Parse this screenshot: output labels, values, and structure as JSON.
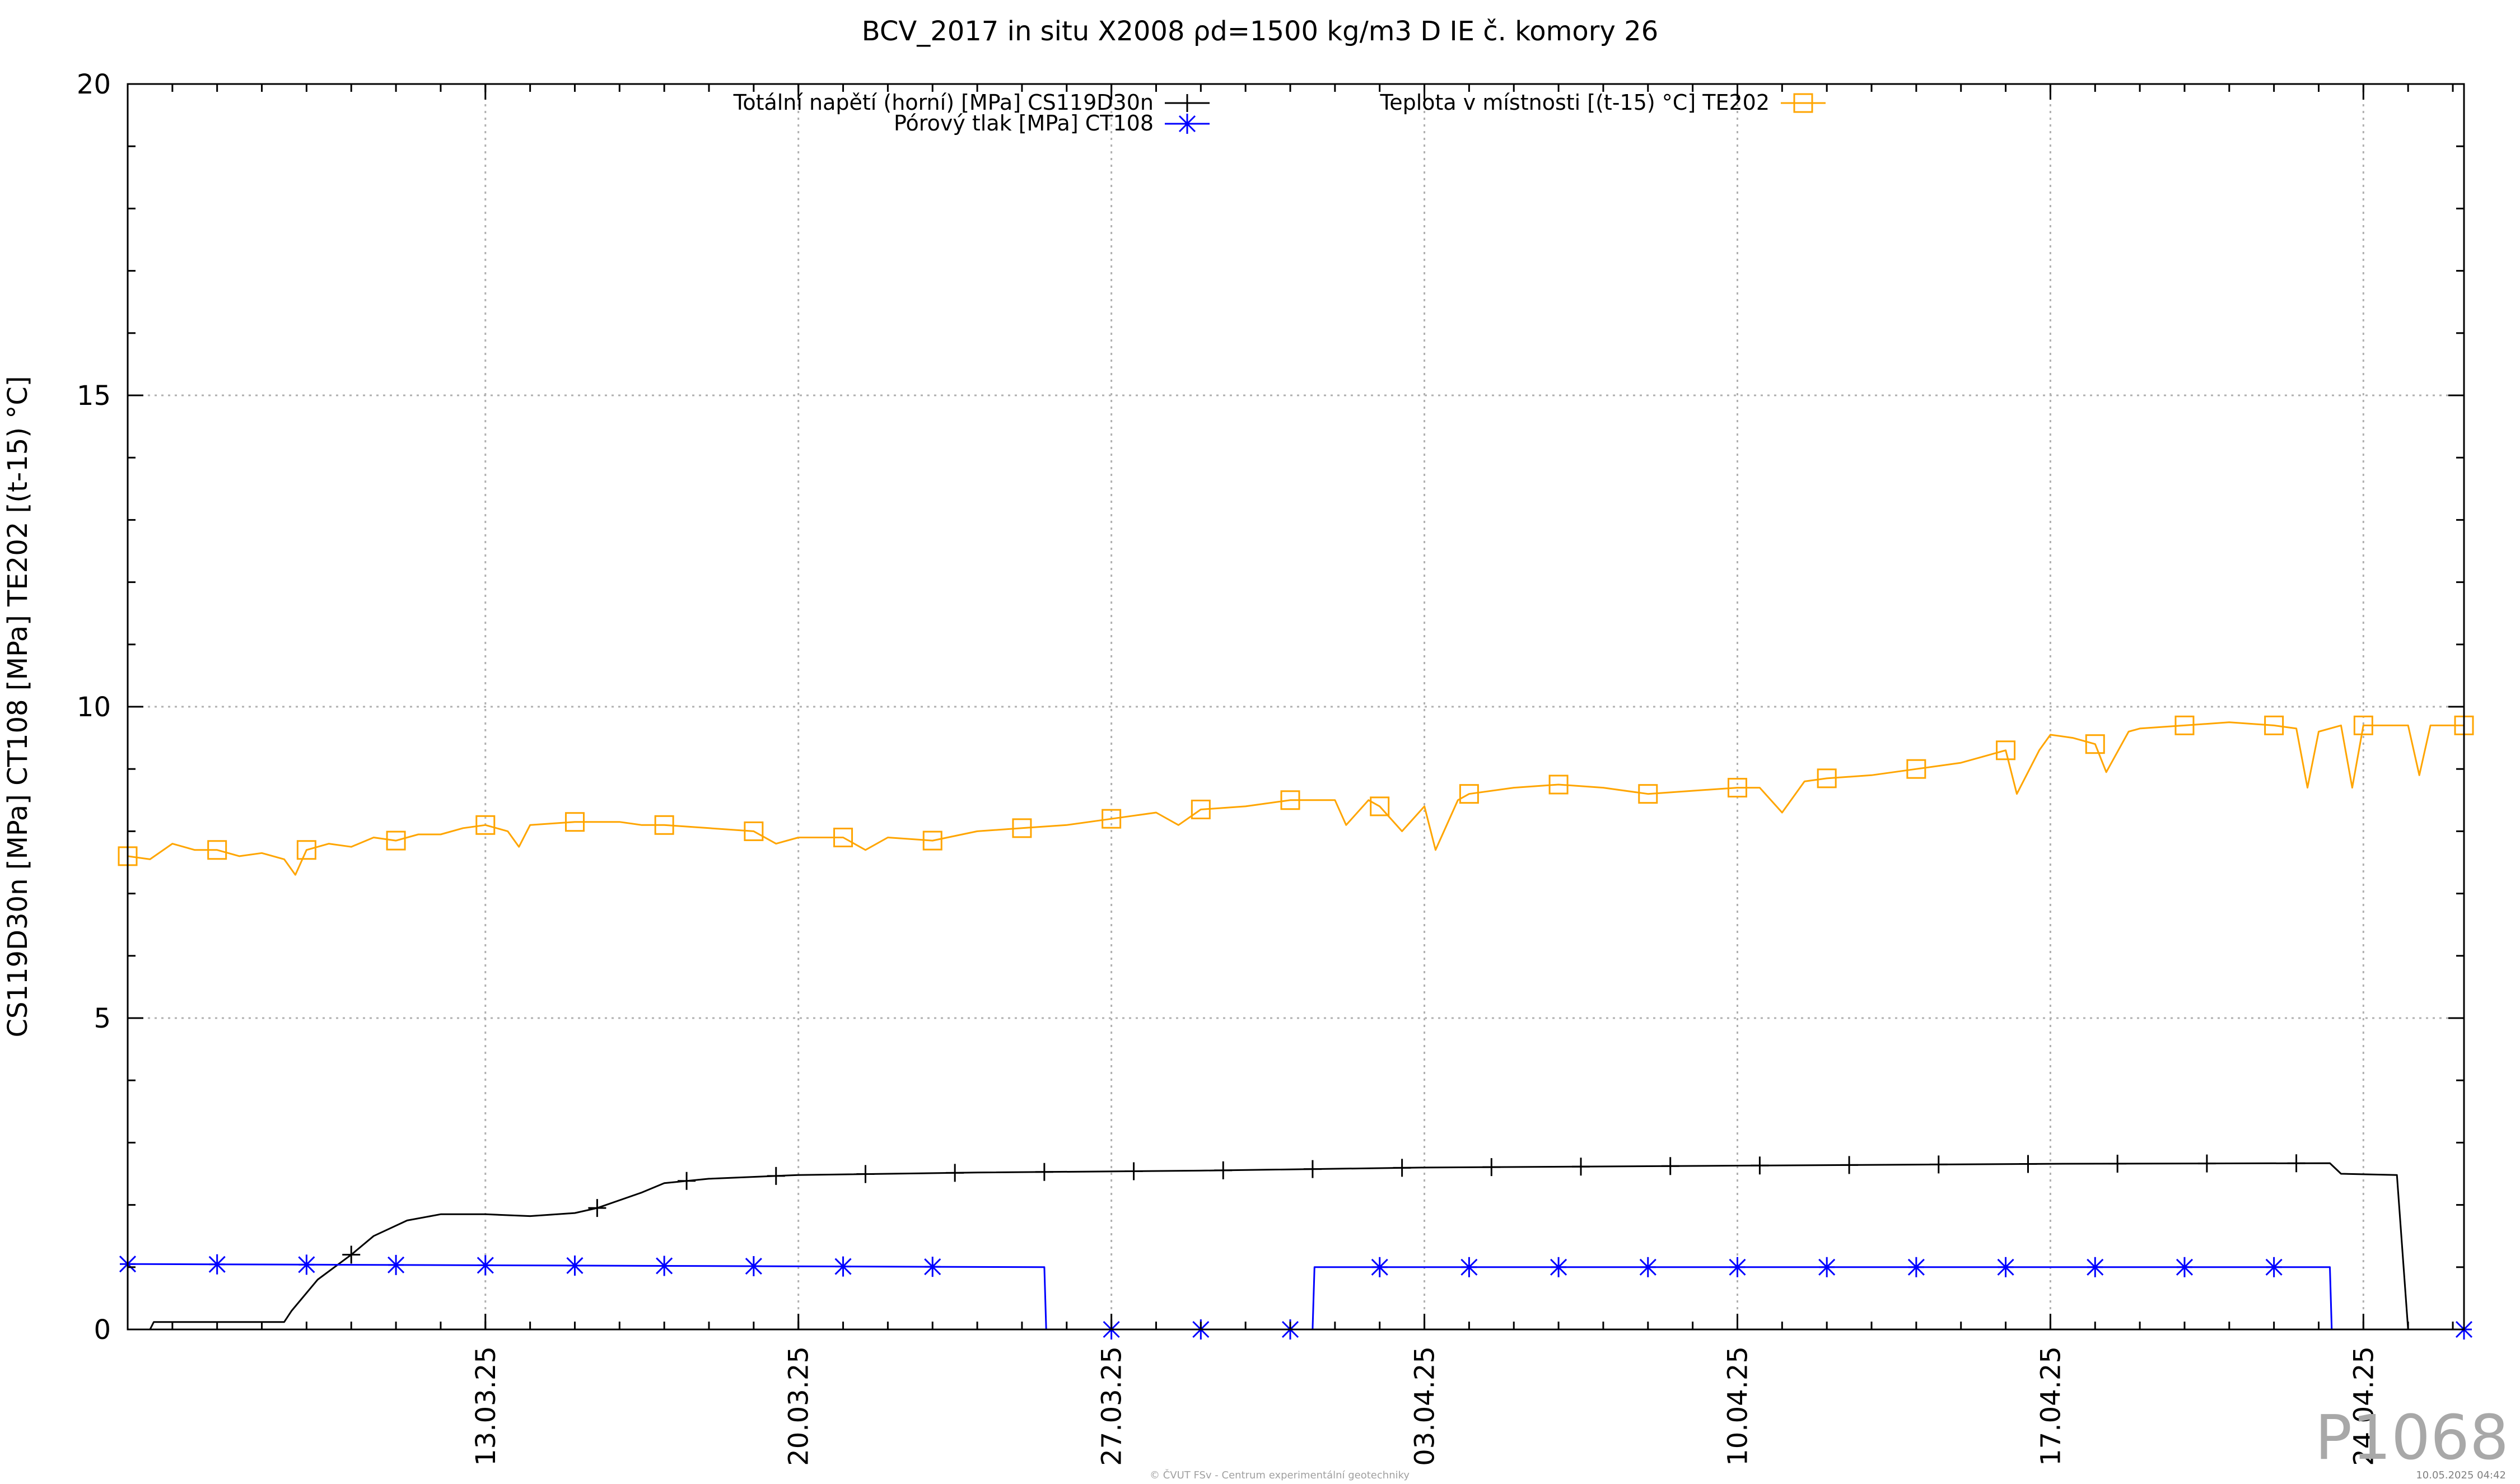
{
  "chart_data": {
    "type": "line",
    "title": "BCV_2017 in situ X2008 ρd=1500 kg/m3 D IE č. komory 26",
    "ylabel": "CS119D30n [MPa] CT108 [MPa] TE202 [(t-15) °C]",
    "xlabel": "",
    "ylim": [
      0,
      20
    ],
    "yticks": [
      0,
      5,
      10,
      15,
      20
    ],
    "xlim": [
      "2025-03-05 00:00",
      "2025-04-26 06:00"
    ],
    "xticks": [
      {
        "date": "2025-03-13",
        "label": "13.03.25"
      },
      {
        "date": "2025-03-20",
        "label": "20.03.25"
      },
      {
        "date": "2025-03-27",
        "label": "27.03.25"
      },
      {
        "date": "2025-04-03",
        "label": "03.04.25"
      },
      {
        "date": "2025-04-10",
        "label": "10.04.25"
      },
      {
        "date": "2025-04-17",
        "label": "17.04.25"
      },
      {
        "date": "2025-04-24",
        "label": "24.04.25"
      }
    ],
    "grid": true,
    "legend_position": "top",
    "series": [
      {
        "name": "Totální napětí (horní) [MPa] CS119D30n",
        "color": "#000000",
        "marker": "plus",
        "points": [
          [
            "2025-03-05 00:00",
            0.0
          ],
          [
            "2025-03-05 12:00",
            0.0
          ],
          [
            "2025-03-05 14:00",
            0.12
          ],
          [
            "2025-03-08 12:00",
            0.12
          ],
          [
            "2025-03-08 16:00",
            0.3
          ],
          [
            "2025-03-09 06:00",
            0.8
          ],
          [
            "2025-03-10 00:00",
            1.2
          ],
          [
            "2025-03-10 12:00",
            1.5
          ],
          [
            "2025-03-11 06:00",
            1.75
          ],
          [
            "2025-03-12 00:00",
            1.85
          ],
          [
            "2025-03-13 00:00",
            1.85
          ],
          [
            "2025-03-14 00:00",
            1.82
          ],
          [
            "2025-03-15 00:00",
            1.87
          ],
          [
            "2025-03-15 12:00",
            1.95
          ],
          [
            "2025-03-16 12:00",
            2.2
          ],
          [
            "2025-03-17 00:00",
            2.35
          ],
          [
            "2025-03-18 00:00",
            2.42
          ],
          [
            "2025-03-20 00:00",
            2.48
          ],
          [
            "2025-03-24 00:00",
            2.52
          ],
          [
            "2025-03-29 00:00",
            2.55
          ],
          [
            "2025-04-03 00:00",
            2.6
          ],
          [
            "2025-04-10 00:00",
            2.63
          ],
          [
            "2025-04-17 00:00",
            2.66
          ],
          [
            "2025-04-23 06:00",
            2.67
          ],
          [
            "2025-04-23 12:00",
            2.5
          ],
          [
            "2025-04-24 18:00",
            2.48
          ],
          [
            "2025-04-25 00:00",
            0.0
          ],
          [
            "2025-04-26 06:00",
            0.0
          ]
        ],
        "markers": [
          "2025-03-10 00:00",
          "2025-03-15 12:00",
          "2025-03-17 12:00",
          "2025-03-19 12:00",
          "2025-03-21 12:00",
          "2025-03-23 12:00",
          "2025-03-25 12:00",
          "2025-03-27 12:00",
          "2025-03-29 12:00",
          "2025-03-31 12:00",
          "2025-04-02 12:00",
          "2025-04-04 12:00",
          "2025-04-06 12:00",
          "2025-04-08 12:00",
          "2025-04-10 12:00",
          "2025-04-12 12:00",
          "2025-04-14 12:00",
          "2025-04-16 12:00",
          "2025-04-18 12:00",
          "2025-04-20 12:00",
          "2025-04-22 12:00"
        ]
      },
      {
        "name": "Pórový tlak [MPa] CT108",
        "color": "#0000ff",
        "marker": "star",
        "points": [
          [
            "2025-03-05 00:00",
            1.05
          ],
          [
            "2025-03-25 12:00",
            1.0
          ],
          [
            "2025-03-25 13:00",
            0.0
          ],
          [
            "2025-03-31 12:00",
            0.0
          ],
          [
            "2025-03-31 13:00",
            1.0
          ],
          [
            "2025-04-23 06:00",
            1.0
          ],
          [
            "2025-04-23 07:00",
            0.0
          ],
          [
            "2025-04-26 06:00",
            0.0
          ]
        ],
        "markers": [
          "2025-03-05 00:00",
          "2025-03-07 00:00",
          "2025-03-09 00:00",
          "2025-03-11 00:00",
          "2025-03-13 00:00",
          "2025-03-15 00:00",
          "2025-03-17 00:00",
          "2025-03-19 00:00",
          "2025-03-21 00:00",
          "2025-03-23 00:00",
          "2025-03-27 00:00",
          "2025-03-29 00:00",
          "2025-03-31 00:00",
          "2025-04-02 00:00",
          "2025-04-04 00:00",
          "2025-04-06 00:00",
          "2025-04-08 00:00",
          "2025-04-10 00:00",
          "2025-04-12 00:00",
          "2025-04-14 00:00",
          "2025-04-16 00:00",
          "2025-04-18 00:00",
          "2025-04-20 00:00",
          "2025-04-22 00:00",
          "2025-04-26 06:00"
        ]
      },
      {
        "name": "Teplota v místnosti [(t-15) °C] TE202",
        "color": "#ffa500",
        "marker": "square",
        "points": [
          [
            "2025-03-05 00:00",
            7.6
          ],
          [
            "2025-03-05 12:00",
            7.55
          ],
          [
            "2025-03-06 00:00",
            7.8
          ],
          [
            "2025-03-06 12:00",
            7.7
          ],
          [
            "2025-03-07 00:00",
            7.7
          ],
          [
            "2025-03-07 12:00",
            7.6
          ],
          [
            "2025-03-08 00:00",
            7.65
          ],
          [
            "2025-03-08 12:00",
            7.55
          ],
          [
            "2025-03-08 18:00",
            7.3
          ],
          [
            "2025-03-09 00:00",
            7.7
          ],
          [
            "2025-03-09 12:00",
            7.8
          ],
          [
            "2025-03-10 00:00",
            7.75
          ],
          [
            "2025-03-10 12:00",
            7.9
          ],
          [
            "2025-03-11 00:00",
            7.85
          ],
          [
            "2025-03-11 12:00",
            7.95
          ],
          [
            "2025-03-12 00:00",
            7.95
          ],
          [
            "2025-03-12 12:00",
            8.05
          ],
          [
            "2025-03-13 00:00",
            8.1
          ],
          [
            "2025-03-13 12:00",
            8.0
          ],
          [
            "2025-03-13 18:00",
            7.75
          ],
          [
            "2025-03-14 00:00",
            8.1
          ],
          [
            "2025-03-15 00:00",
            8.15
          ],
          [
            "2025-03-16 00:00",
            8.15
          ],
          [
            "2025-03-16 12:00",
            8.1
          ],
          [
            "2025-03-17 00:00",
            8.1
          ],
          [
            "2025-03-18 00:00",
            8.05
          ],
          [
            "2025-03-19 00:00",
            8.0
          ],
          [
            "2025-03-19 12:00",
            7.8
          ],
          [
            "2025-03-20 00:00",
            7.9
          ],
          [
            "2025-03-21 00:00",
            7.9
          ],
          [
            "2025-03-21 12:00",
            7.7
          ],
          [
            "2025-03-22 00:00",
            7.9
          ],
          [
            "2025-03-23 00:00",
            7.85
          ],
          [
            "2025-03-24 00:00",
            8.0
          ],
          [
            "2025-03-25 00:00",
            8.05
          ],
          [
            "2025-03-26 00:00",
            8.1
          ],
          [
            "2025-03-27 00:00",
            8.2
          ],
          [
            "2025-03-28 00:00",
            8.3
          ],
          [
            "2025-03-28 12:00",
            8.1
          ],
          [
            "2025-03-29 00:00",
            8.35
          ],
          [
            "2025-03-30 00:00",
            8.4
          ],
          [
            "2025-03-31 00:00",
            8.5
          ],
          [
            "2025-04-01 00:00",
            8.5
          ],
          [
            "2025-04-01 06:00",
            8.1
          ],
          [
            "2025-04-01 18:00",
            8.5
          ],
          [
            "2025-04-02 00:00",
            8.4
          ],
          [
            "2025-04-02 12:00",
            8.0
          ],
          [
            "2025-04-03 00:00",
            8.4
          ],
          [
            "2025-04-03 06:00",
            7.7
          ],
          [
            "2025-04-03 18:00",
            8.5
          ],
          [
            "2025-04-04 00:00",
            8.6
          ],
          [
            "2025-04-05 00:00",
            8.7
          ],
          [
            "2025-04-06 00:00",
            8.75
          ],
          [
            "2025-04-07 00:00",
            8.7
          ],
          [
            "2025-04-08 00:00",
            8.6
          ],
          [
            "2025-04-09 00:00",
            8.65
          ],
          [
            "2025-04-10 00:00",
            8.7
          ],
          [
            "2025-04-10 12:00",
            8.7
          ],
          [
            "2025-04-11 00:00",
            8.3
          ],
          [
            "2025-04-11 12:00",
            8.8
          ],
          [
            "2025-04-12 00:00",
            8.85
          ],
          [
            "2025-04-13 00:00",
            8.9
          ],
          [
            "2025-04-14 00:00",
            9.0
          ],
          [
            "2025-04-15 00:00",
            9.1
          ],
          [
            "2025-04-16 00:00",
            9.3
          ],
          [
            "2025-04-16 06:00",
            8.6
          ],
          [
            "2025-04-16 18:00",
            9.3
          ],
          [
            "2025-04-17 00:00",
            9.55
          ],
          [
            "2025-04-17 12:00",
            9.5
          ],
          [
            "2025-04-18 00:00",
            9.4
          ],
          [
            "2025-04-18 06:00",
            8.95
          ],
          [
            "2025-04-18 18:00",
            9.6
          ],
          [
            "2025-04-19 00:00",
            9.65
          ],
          [
            "2025-04-20 00:00",
            9.7
          ],
          [
            "2025-04-21 00:00",
            9.75
          ],
          [
            "2025-04-22 00:00",
            9.7
          ],
          [
            "2025-04-22 12:00",
            9.65
          ],
          [
            "2025-04-22 18:00",
            8.7
          ],
          [
            "2025-04-23 00:00",
            9.6
          ],
          [
            "2025-04-23 12:00",
            9.7
          ],
          [
            "2025-04-23 18:00",
            8.7
          ],
          [
            "2025-04-24 00:00",
            9.7
          ],
          [
            "2025-04-25 00:00",
            9.7
          ],
          [
            "2025-04-25 06:00",
            8.9
          ],
          [
            "2025-04-25 12:00",
            9.7
          ],
          [
            "2025-04-26 06:00",
            9.7
          ]
        ],
        "markers": [
          "2025-03-05 00:00",
          "2025-03-07 00:00",
          "2025-03-09 00:00",
          "2025-03-11 00:00",
          "2025-03-13 00:00",
          "2025-03-15 00:00",
          "2025-03-17 00:00",
          "2025-03-19 00:00",
          "2025-03-21 00:00",
          "2025-03-23 00:00",
          "2025-03-25 00:00",
          "2025-03-27 00:00",
          "2025-03-29 00:00",
          "2025-03-31 00:00",
          "2025-04-02 00:00",
          "2025-04-04 00:00",
          "2025-04-06 00:00",
          "2025-04-08 00:00",
          "2025-04-10 00:00",
          "2025-04-12 00:00",
          "2025-04-14 00:00",
          "2025-04-16 00:00",
          "2025-04-18 00:00",
          "2025-04-20 00:00",
          "2025-04-22 00:00",
          "2025-04-24 00:00",
          "2025-04-26 06:00"
        ]
      }
    ]
  },
  "footer": {
    "copyright": "© ČVUT FSv - Centrum experimentální geotechniky",
    "timestamp": "10.05.2025 04:42",
    "watermark": "P1068"
  }
}
